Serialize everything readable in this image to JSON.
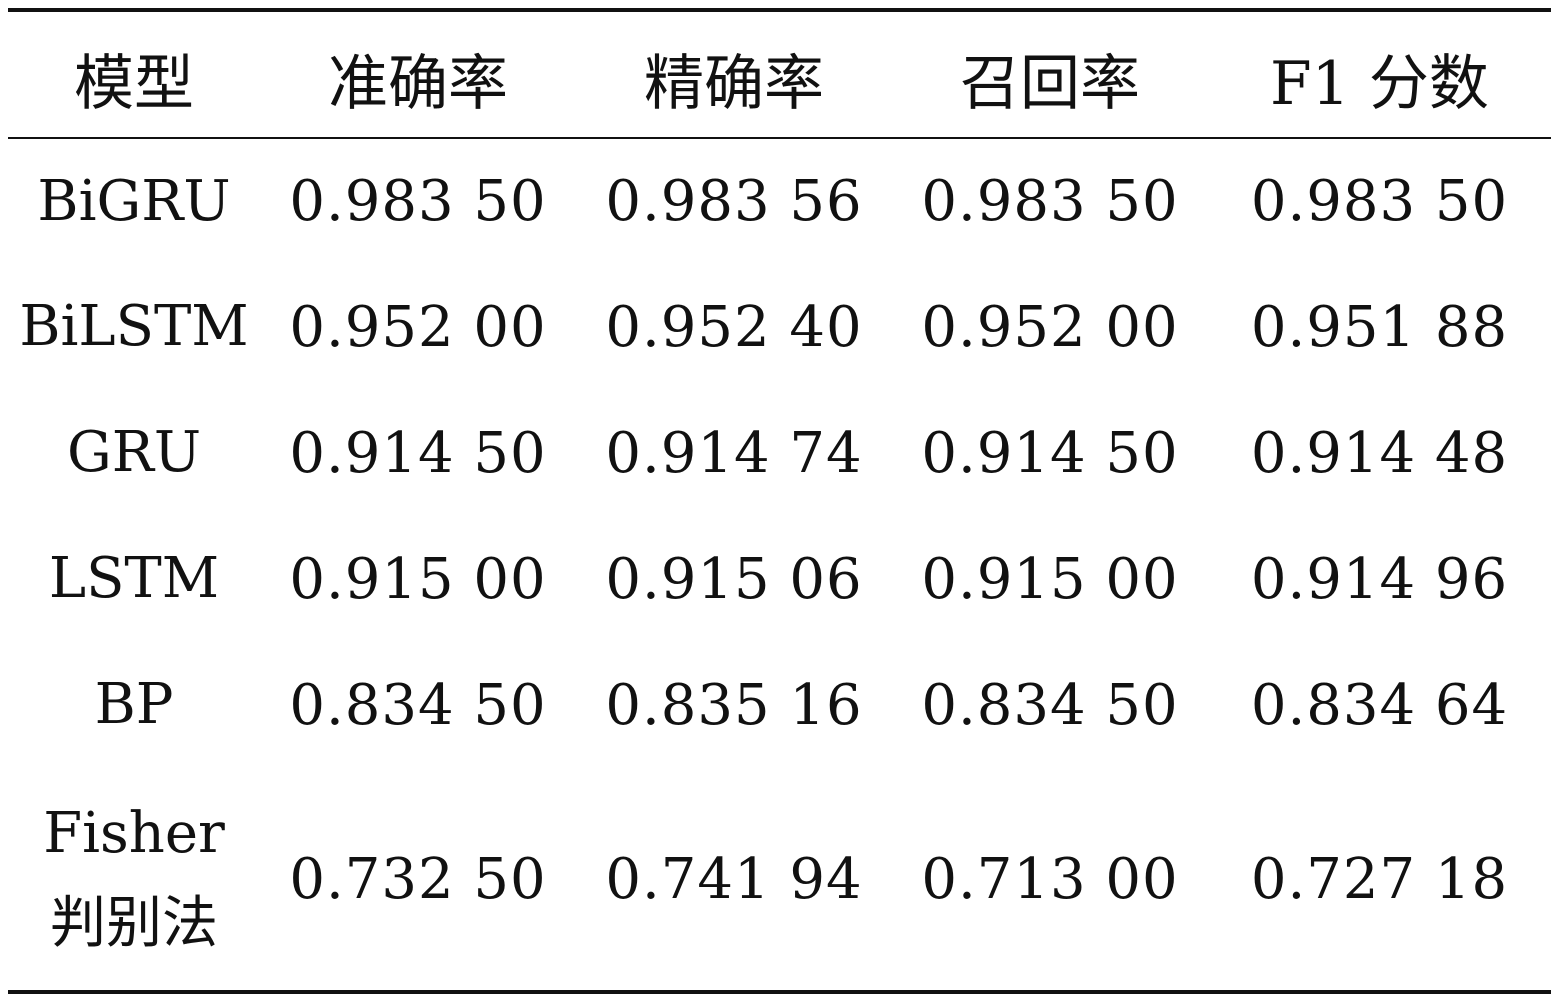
{
  "table": {
    "headers": [
      "模型",
      "准确率",
      "精确率",
      "召回率",
      "F1 分数"
    ],
    "rows": [
      {
        "model": "BiGRU",
        "accuracy": "0.983 50",
        "precision": "0.983 56",
        "recall": "0.983 50",
        "f1": "0.983 50"
      },
      {
        "model": "BiLSTM",
        "accuracy": "0.952 00",
        "precision": "0.952 40",
        "recall": "0.952 00",
        "f1": "0.951 88"
      },
      {
        "model": "GRU",
        "accuracy": "0.914 50",
        "precision": "0.914 74",
        "recall": "0.914 50",
        "f1": "0.914 48"
      },
      {
        "model": "LSTM",
        "accuracy": "0.915 00",
        "precision": "0.915 06",
        "recall": "0.915 00",
        "f1": "0.914 96"
      },
      {
        "model": "BP",
        "accuracy": "0.834 50",
        "precision": "0.835 16",
        "recall": "0.834 50",
        "f1": "0.834 64"
      },
      {
        "model_line1": "Fisher",
        "model_line2": "判别法",
        "accuracy": "0.732 50",
        "precision": "0.741 94",
        "recall": "0.713 00",
        "f1": "0.727 18"
      }
    ]
  }
}
